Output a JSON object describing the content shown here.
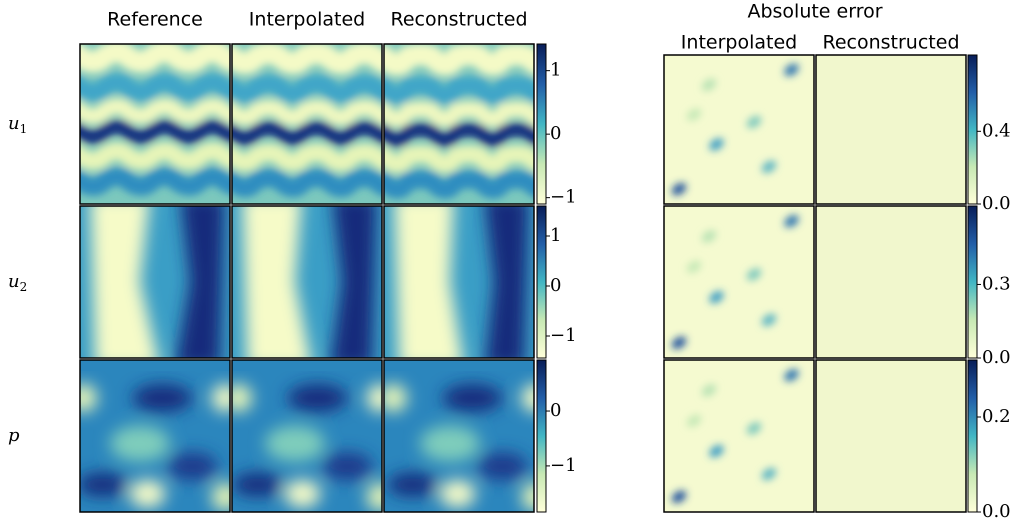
{
  "column_titles": [
    "Reference",
    "Interpolated",
    "Reconstructed"
  ],
  "error_title": "Absolute error",
  "error_column_titles": [
    "Interpolated",
    "Reconstructed"
  ],
  "row_labels": [
    {
      "symbol": "u",
      "subscript": "1"
    },
    {
      "symbol": "u",
      "subscript": "2"
    },
    {
      "symbol": "p"
    }
  ],
  "colorbars": [
    {
      "lim": [
        -1.1,
        1.42
      ],
      "ticks": [
        {
          "value": -1,
          "label": "−1"
        },
        0,
        1
      ]
    },
    {
      "lim": [
        -1.44,
        1.6
      ],
      "ticks": [
        {
          "value": -1,
          "label": "−1"
        },
        0,
        1
      ]
    },
    {
      "lim": [
        -1.84,
        0.93
      ],
      "ticks": [
        {
          "value": -1,
          "label": "−1"
        },
        0
      ]
    }
  ],
  "error_colorbars": [
    {
      "lim": [
        0,
        0.82
      ],
      "ticks": [
        {
          "value": 0,
          "label": "0.0"
        },
        0.4
      ]
    },
    {
      "lim": [
        0,
        0.62
      ],
      "ticks": [
        {
          "value": 0,
          "label": "0.0"
        },
        0.3
      ]
    },
    {
      "lim": [
        0,
        0.32
      ],
      "ticks": [
        {
          "value": 0,
          "label": "0.0"
        },
        0.2
      ]
    }
  ]
}
